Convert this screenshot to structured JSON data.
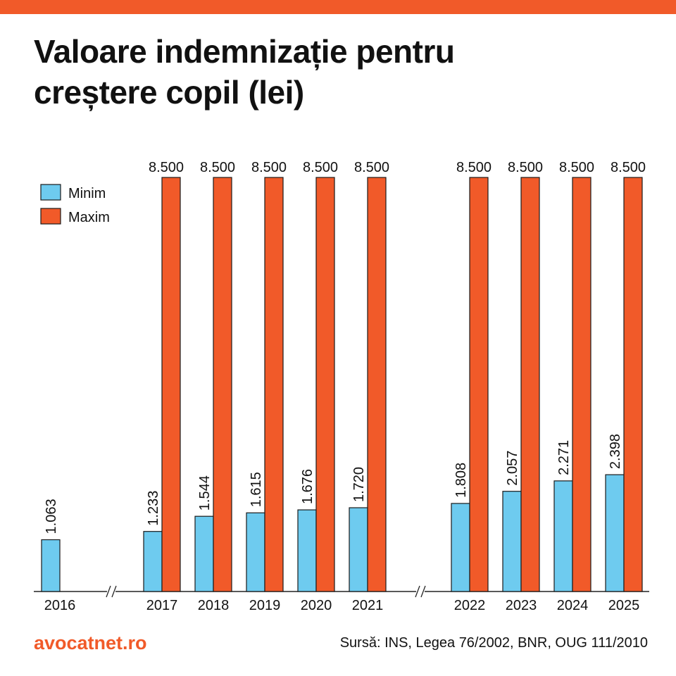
{
  "title": {
    "line1": "Valoare indemnizație pentru",
    "line2": "creștere copil (lei)"
  },
  "colors": {
    "accent": "#f15a29",
    "minim": "#6ecbef",
    "maxim": "#f15a29",
    "brand": "#f15a29"
  },
  "chart_data": {
    "type": "bar",
    "categories": [
      "2016",
      "2017",
      "2018",
      "2019",
      "2020",
      "2021",
      "2022",
      "2023",
      "2024",
      "2025"
    ],
    "series": [
      {
        "name": "Minim",
        "values": [
          1063,
          1233,
          1544,
          1615,
          1676,
          1720,
          1808,
          2057,
          2271,
          2398
        ],
        "labels": [
          "1.063",
          "1.233",
          "1.544",
          "1.615",
          "1.676",
          "1.720",
          "1.808",
          "2.057",
          "2.271",
          "2.398"
        ]
      },
      {
        "name": "Maxim",
        "values": [
          null,
          8500,
          8500,
          8500,
          8500,
          8500,
          8500,
          8500,
          8500,
          8500
        ],
        "labels": [
          "",
          "8.500",
          "8.500",
          "8.500",
          "8.500",
          "8.500",
          "8.500",
          "8.500",
          "8.500",
          "8.500"
        ]
      }
    ],
    "ylim": [
      0,
      8500
    ],
    "axis_breaks_after": [
      "2016",
      "2021"
    ],
    "legend_placement": "top-left",
    "grid": false
  },
  "footer": {
    "brand": "avocatnet.ro",
    "source": "Sursă: INS, Legea 76/2002, BNR, OUG 111/2010"
  }
}
